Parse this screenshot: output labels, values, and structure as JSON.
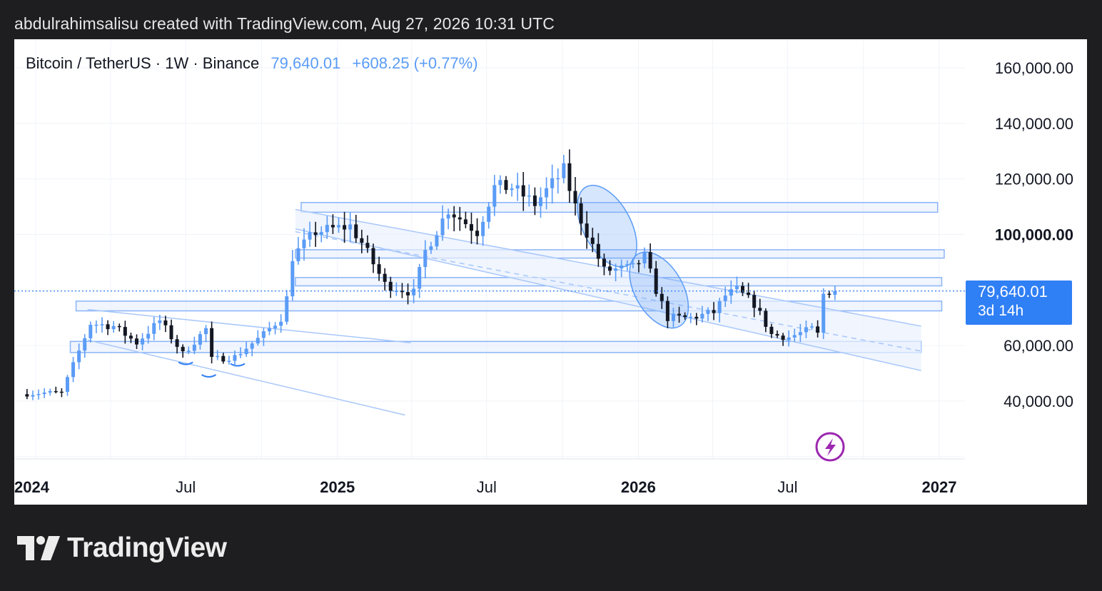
{
  "header": {
    "credit": "abdulrahimsalisu created with TradingView.com, Aug 27, 2026 10:31 UTC"
  },
  "symbol": {
    "title": "Bitcoin / TetherUS · 1W · Binance",
    "price": "79,640.01",
    "change": "+608.25 (+0.77%)"
  },
  "price_tag": {
    "price": "79,640.01",
    "countdown": "3d 14h"
  },
  "colors": {
    "bull": "#5b9cf6",
    "bear": "#131722",
    "accent": "#2f7ff5",
    "zone_stroke": "#8ab4f8",
    "zone_fill": "#e3edfd",
    "lightning": "#9c27b0"
  },
  "icons": {
    "lightning": "lightning-icon",
    "logo": "tradingview-logo-icon"
  },
  "footer": {
    "brand": "TradingView"
  },
  "chart_data": {
    "type": "candlestick",
    "title": "Bitcoin / TetherUS · 1W · Binance",
    "interval": "1W",
    "ylim": [
      20000,
      170000
    ],
    "xlim": [
      "2023-12-15",
      "2027-01-20"
    ],
    "y_ticks": [
      {
        "value": 160000,
        "label": "160,000.00",
        "bold": false
      },
      {
        "value": 140000,
        "label": "140,000.00",
        "bold": false
      },
      {
        "value": 120000,
        "label": "120,000.00",
        "bold": false
      },
      {
        "value": 100000,
        "label": "100,000.00",
        "bold": true
      },
      {
        "value": 60000,
        "label": "60,000.00",
        "bold": false
      },
      {
        "value": 40000,
        "label": "40,000.00",
        "bold": false
      }
    ],
    "x_ticks": [
      {
        "date": "2024-01-01",
        "label": "2024",
        "bold": true
      },
      {
        "date": "2024-07-01",
        "label": "Jul",
        "bold": false
      },
      {
        "date": "2025-01-01",
        "label": "2025",
        "bold": true
      },
      {
        "date": "2025-07-01",
        "label": "Jul",
        "bold": false
      },
      {
        "date": "2026-01-01",
        "label": "2026",
        "bold": true
      },
      {
        "date": "2026-07-01",
        "label": "Jul",
        "bold": false
      },
      {
        "date": "2027-01-01",
        "label": "2027",
        "bold": true
      }
    ],
    "last_price": 79640.01,
    "candle_anchors": [
      [
        "2023-12-18",
        42500
      ],
      [
        "2024-01-15",
        43000
      ],
      [
        "2024-02-05",
        43000
      ],
      [
        "2024-03-11",
        68000
      ],
      [
        "2024-04-08",
        67000
      ],
      [
        "2024-05-06",
        61000
      ],
      [
        "2024-06-03",
        69000
      ],
      [
        "2024-07-01",
        57000
      ],
      [
        "2024-07-29",
        66000
      ],
      [
        "2024-08-05",
        55000
      ],
      [
        "2024-09-02",
        56000
      ],
      [
        "2024-10-07",
        64000
      ],
      [
        "2024-10-28",
        70000
      ],
      [
        "2024-11-04",
        77000
      ],
      [
        "2024-11-11",
        92000
      ],
      [
        "2024-12-09",
        101000
      ],
      [
        "2025-01-20",
        103000
      ],
      [
        "2025-02-03",
        97000
      ],
      [
        "2025-03-03",
        82000
      ],
      [
        "2025-04-07",
        79000
      ],
      [
        "2025-04-21",
        94000
      ],
      [
        "2025-05-19",
        109000
      ],
      [
        "2025-06-23",
        101000
      ],
      [
        "2025-07-14",
        117000
      ],
      [
        "2025-08-04",
        117000
      ],
      [
        "2025-09-01",
        111000
      ],
      [
        "2025-10-06",
        123000
      ],
      [
        "2025-10-20",
        110000
      ],
      [
        "2025-11-10",
        96000
      ],
      [
        "2025-11-24",
        87000
      ],
      [
        "2025-12-29",
        88000
      ],
      [
        "2026-01-12",
        92000
      ],
      [
        "2026-01-26",
        80000
      ],
      [
        "2026-02-09",
        70000
      ],
      [
        "2026-03-09",
        70000
      ],
      [
        "2026-04-06",
        72000
      ],
      [
        "2026-04-20",
        78000
      ],
      [
        "2026-05-04",
        80000
      ],
      [
        "2026-05-25",
        75000
      ],
      [
        "2026-06-15",
        64000
      ],
      [
        "2026-07-06",
        63000
      ],
      [
        "2026-08-03",
        66000
      ],
      [
        "2026-08-10",
        64000
      ],
      [
        "2026-08-17",
        78500
      ],
      [
        "2026-08-24",
        79640
      ]
    ],
    "zones": [
      {
        "from": "2024-11-18",
        "to": "2026-12-30",
        "low": 108000,
        "high": 111500
      },
      {
        "from": "2024-11-11",
        "to": "2027-01-07",
        "low": 91500,
        "high": 94500
      },
      {
        "from": "2024-11-11",
        "to": "2027-01-04",
        "low": 81500,
        "high": 84500
      },
      {
        "from": "2024-02-19",
        "to": "2027-01-04",
        "low": 72500,
        "high": 76000
      },
      {
        "from": "2024-02-12",
        "to": "2026-12-10",
        "low": 57500,
        "high": 61500
      }
    ],
    "trendlines": [
      {
        "from": [
          "2024-03-04",
          73000
        ],
        "to": [
          "2025-03-31",
          61000
        ]
      },
      {
        "from": [
          "2024-03-04",
          62000
        ],
        "to": [
          "2025-03-24",
          35000
        ]
      },
      {
        "from": [
          "2024-11-11",
          109000
        ],
        "to": [
          "2026-12-10",
          67000
        ]
      },
      {
        "from": [
          "2024-11-11",
          102000
        ],
        "to": [
          "2026-12-10",
          51000
        ]
      }
    ],
    "dashed_midline": {
      "from": [
        "2024-11-11",
        101000
      ],
      "to": [
        "2026-12-10",
        58000
      ]
    },
    "ellipses": [
      {
        "center": [
          "2025-11-24",
          103000
        ],
        "rx_days": 29,
        "ry_value": 16000,
        "rotate_deg": -28
      },
      {
        "center": [
          "2026-01-26",
          80000
        ],
        "rx_days": 29,
        "ry_value": 15000,
        "rotate_deg": -30
      }
    ],
    "arcs": [
      [
        "2024-07-01",
        54000
      ],
      [
        "2024-07-29",
        49500
      ],
      [
        "2024-09-02",
        53500
      ]
    ],
    "candle_seed": 7
  }
}
